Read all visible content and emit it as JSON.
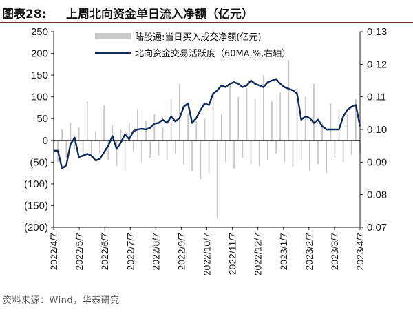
{
  "title": {
    "label": "图表28:",
    "text": "上周北向资金单日流入净额（亿元）"
  },
  "source": "资料来源：Wind，华泰研究",
  "chart_data": {
    "type": "bar+line",
    "title": "上周北向资金单日流入净额（亿元）",
    "left_axis": {
      "range": [
        -200,
        250
      ],
      "ticks": [
        250,
        200,
        150,
        100,
        50,
        0,
        -50,
        -100,
        -150,
        -200
      ],
      "tick_labels": [
        "250",
        "200",
        "150",
        "100",
        "50",
        "0",
        "(50)",
        "(100)",
        "(150)",
        "(200)"
      ]
    },
    "right_axis": {
      "range": [
        0.07,
        0.13
      ],
      "ticks": [
        0.13,
        0.12,
        0.11,
        0.1,
        0.09,
        0.08,
        0.07
      ],
      "tick_labels": [
        "0.13",
        "0.12",
        "0.11",
        "0.10",
        "0.09",
        "0.08",
        "0.07"
      ]
    },
    "x_axis": {
      "tick_labels": [
        "2022/4/7",
        "2022/5/7",
        "2022/6/7",
        "2022/7/7",
        "2022/8/7",
        "2022/9/7",
        "2022/10/7",
        "2022/11/7",
        "2022/12/7",
        "2023/1/7",
        "2023/2/7",
        "2023/3/7",
        "2023/4/7"
      ]
    },
    "legend": {
      "position": "top-center",
      "entries": [
        {
          "name": "陆股通:当日买入成交净额(亿元)",
          "color": "#c8c8c8",
          "kind": "bar"
        },
        {
          "name": "北向资金交易活跃度（60MA,%,右轴）",
          "color": "#0d2a5c",
          "kind": "line"
        }
      ]
    },
    "series": [
      {
        "name": "陆股通:当日买入成交净额(亿元)",
        "axis": "left",
        "kind": "bar",
        "color": "#c8c8c8",
        "note_values_estimated": true,
        "x": [
          "2022-04-07",
          "2022-04-12",
          "2022-04-17",
          "2022-04-22",
          "2022-04-27",
          "2022-05-02",
          "2022-05-07",
          "2022-05-12",
          "2022-05-17",
          "2022-05-22",
          "2022-05-27",
          "2022-06-01",
          "2022-06-06",
          "2022-06-11",
          "2022-06-16",
          "2022-06-21",
          "2022-06-26",
          "2022-07-01",
          "2022-07-06",
          "2022-07-11",
          "2022-07-16",
          "2022-07-21",
          "2022-07-26",
          "2022-07-31",
          "2022-08-05",
          "2022-08-10",
          "2022-08-15",
          "2022-08-20",
          "2022-08-25",
          "2022-08-30",
          "2022-09-04",
          "2022-09-09",
          "2022-09-14",
          "2022-09-19",
          "2022-09-24",
          "2022-09-29",
          "2022-10-04",
          "2022-10-09",
          "2022-10-14",
          "2022-10-19",
          "2022-10-24",
          "2022-10-29",
          "2022-11-03",
          "2022-11-08",
          "2022-11-13",
          "2022-11-18",
          "2022-11-23",
          "2022-11-28",
          "2022-12-03",
          "2022-12-08",
          "2022-12-13",
          "2022-12-18",
          "2022-12-23",
          "2022-12-28",
          "2023-01-02",
          "2023-01-07",
          "2023-01-12",
          "2023-01-17",
          "2023-01-22",
          "2023-01-27",
          "2023-02-01",
          "2023-02-06",
          "2023-02-11",
          "2023-02-16",
          "2023-02-21",
          "2023-02-26",
          "2023-03-03",
          "2023-03-08",
          "2023-03-13",
          "2023-03-18",
          "2023-03-23",
          "2023-03-28",
          "2023-04-02",
          "2023-04-07"
        ],
        "values": [
          -30,
          -50,
          25,
          -40,
          40,
          -20,
          30,
          -35,
          90,
          -40,
          20,
          -30,
          80,
          -45,
          35,
          -60,
          25,
          -70,
          40,
          -25,
          70,
          -50,
          45,
          -40,
          60,
          -35,
          30,
          -45,
          95,
          -30,
          130,
          -55,
          60,
          -70,
          45,
          -90,
          50,
          -75,
          110,
          -180,
          60,
          -50,
          130,
          -65,
          100,
          -40,
          120,
          -55,
          95,
          -60,
          150,
          -45,
          90,
          -30,
          110,
          -50,
          185,
          -60,
          120,
          -45,
          100,
          -70,
          130,
          -55,
          40,
          -75,
          85,
          -40,
          70,
          -50,
          60,
          -35,
          95,
          -30
        ]
      },
      {
        "name": "北向资金交易活跃度（60MA,%,右轴）",
        "axis": "right",
        "kind": "line",
        "color": "#0d2a5c",
        "x": [
          "2022-04-07",
          "2022-04-12",
          "2022-04-17",
          "2022-04-22",
          "2022-04-27",
          "2022-05-02",
          "2022-05-07",
          "2022-05-12",
          "2022-05-17",
          "2022-05-22",
          "2022-05-27",
          "2022-06-01",
          "2022-06-06",
          "2022-06-11",
          "2022-06-16",
          "2022-06-21",
          "2022-06-26",
          "2022-07-01",
          "2022-07-06",
          "2022-07-11",
          "2022-07-16",
          "2022-07-21",
          "2022-07-26",
          "2022-07-31",
          "2022-08-05",
          "2022-08-10",
          "2022-08-15",
          "2022-08-20",
          "2022-08-25",
          "2022-08-30",
          "2022-09-04",
          "2022-09-09",
          "2022-09-14",
          "2022-09-19",
          "2022-09-24",
          "2022-09-29",
          "2022-10-04",
          "2022-10-09",
          "2022-10-14",
          "2022-10-19",
          "2022-10-24",
          "2022-10-29",
          "2022-11-03",
          "2022-11-08",
          "2022-11-13",
          "2022-11-18",
          "2022-11-23",
          "2022-11-28",
          "2022-12-03",
          "2022-12-08",
          "2022-12-13",
          "2022-12-18",
          "2022-12-23",
          "2022-12-28",
          "2023-01-02",
          "2023-01-07",
          "2023-01-12",
          "2023-01-17",
          "2023-01-22",
          "2023-01-27",
          "2023-02-01",
          "2023-02-06",
          "2023-02-11",
          "2023-02-16",
          "2023-02-21",
          "2023-02-26",
          "2023-03-03",
          "2023-03-08",
          "2023-03-13",
          "2023-03-18",
          "2023-03-23",
          "2023-03-28",
          "2023-04-02",
          "2023-04-07"
        ],
        "values": [
          0.0935,
          0.0935,
          0.088,
          0.089,
          0.0955,
          0.0975,
          0.0915,
          0.092,
          0.0925,
          0.092,
          0.0905,
          0.091,
          0.093,
          0.095,
          0.098,
          0.094,
          0.096,
          0.0985,
          0.097,
          0.0995,
          0.1,
          0.1002,
          0.1,
          0.1005,
          0.1018,
          0.102,
          0.103,
          0.102,
          0.104,
          0.1025,
          0.1035,
          0.107,
          0.108,
          0.102,
          0.1035,
          0.106,
          0.108,
          0.1075,
          0.111,
          0.112,
          0.1135,
          0.113,
          0.114,
          0.1145,
          0.114,
          0.113,
          0.1135,
          0.115,
          0.114,
          0.1135,
          0.113,
          0.1145,
          0.115,
          0.1155,
          0.114,
          0.113,
          0.1125,
          0.112,
          0.111,
          0.103,
          0.104,
          0.1035,
          0.102,
          0.103,
          0.101,
          0.1,
          0.1,
          0.1,
          0.1,
          0.104,
          0.106,
          0.107,
          0.1075,
          0.101
        ]
      }
    ],
    "grid": false
  }
}
